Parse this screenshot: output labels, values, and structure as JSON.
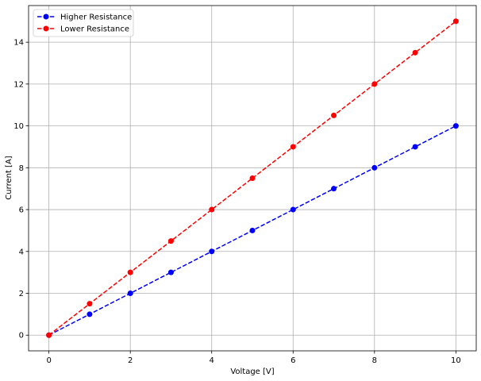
{
  "chart_data": {
    "type": "line",
    "title": "",
    "xlabel": "Voltage [V]",
    "ylabel": "Current [A]",
    "xlim": [
      -0.5,
      10.5
    ],
    "ylim": [
      -0.75,
      15.75
    ],
    "x_ticks": [
      0,
      2,
      4,
      6,
      8,
      10
    ],
    "y_ticks": [
      0,
      2,
      4,
      6,
      8,
      10,
      12,
      14
    ],
    "grid": true,
    "legend_position": "top-left",
    "x": [
      0,
      1,
      2,
      3,
      4,
      5,
      6,
      7,
      8,
      9,
      10
    ],
    "series": [
      {
        "name": "Higher Resistance",
        "color": "#0000ff",
        "line_style": "dashed",
        "marker": "circle",
        "values": [
          0,
          1,
          2,
          3,
          4,
          5,
          6,
          7,
          8,
          9,
          10
        ]
      },
      {
        "name": "Lower Resistance",
        "color": "#ff0000",
        "line_style": "dashed",
        "marker": "circle",
        "values": [
          0,
          1.5,
          3,
          4.5,
          6,
          7.5,
          9,
          10.5,
          12,
          13.5,
          15
        ]
      }
    ]
  }
}
